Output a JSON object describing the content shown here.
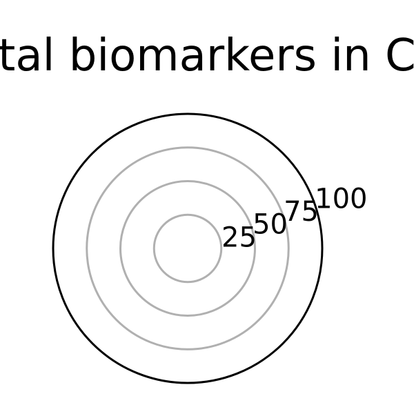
{
  "chart_data": {
    "type": "radar",
    "title": "tal biomarkers in C",
    "r_ticks": [
      "25",
      "50",
      "75",
      "100"
    ],
    "r_tick_values": [
      25,
      50,
      75,
      100
    ],
    "rlim": [
      0,
      100
    ],
    "grid": true,
    "colors": {
      "grid": "#b0b0b0",
      "outer_circle": "#000000",
      "text": "#000000"
    }
  }
}
